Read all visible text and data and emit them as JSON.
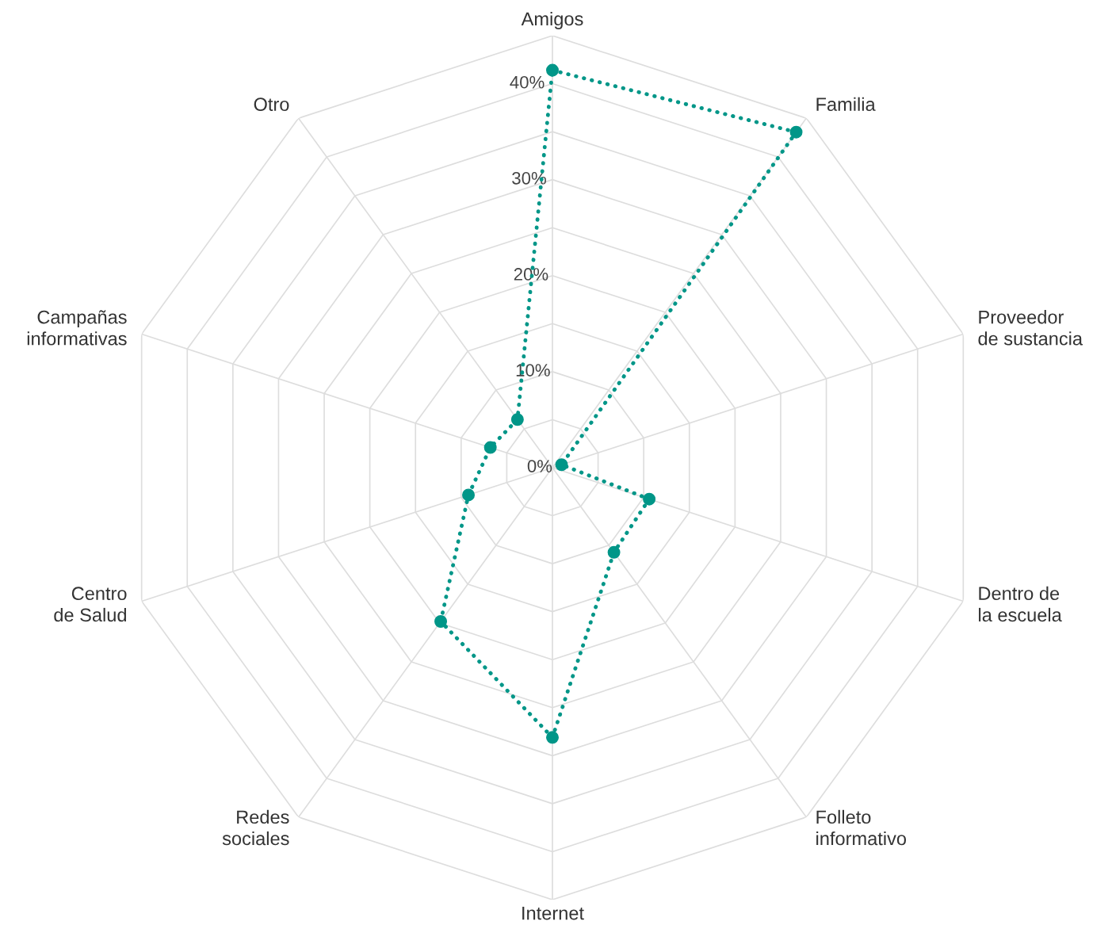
{
  "chart_data": {
    "type": "radar",
    "categories": [
      "Amigos",
      "Familia",
      "Proveedor\nde sustancia",
      "Dentro de\nla escuela",
      "Folleto\ninformativo",
      "Internet",
      "Redes\nsociales",
      "Centro\nde Salud",
      "Campañas\ninformativas",
      "Otro"
    ],
    "series": [
      {
        "color": "#009688",
        "values": [
          41.4,
          43.2,
          1,
          10.6,
          10.9,
          28.1,
          19.8,
          9.2,
          6.8,
          6.2
        ]
      }
    ],
    "ylim": [
      0,
      45
    ],
    "yticks": [
      {
        "value": 0,
        "label": "0%"
      },
      {
        "value": 10,
        "label": "10%"
      },
      {
        "value": 20,
        "label": "20%"
      },
      {
        "value": 30,
        "label": "30%"
      },
      {
        "value": 40,
        "label": "40%"
      }
    ],
    "grid": true,
    "marker": "circle",
    "line_style": "dotted",
    "legend": false
  }
}
